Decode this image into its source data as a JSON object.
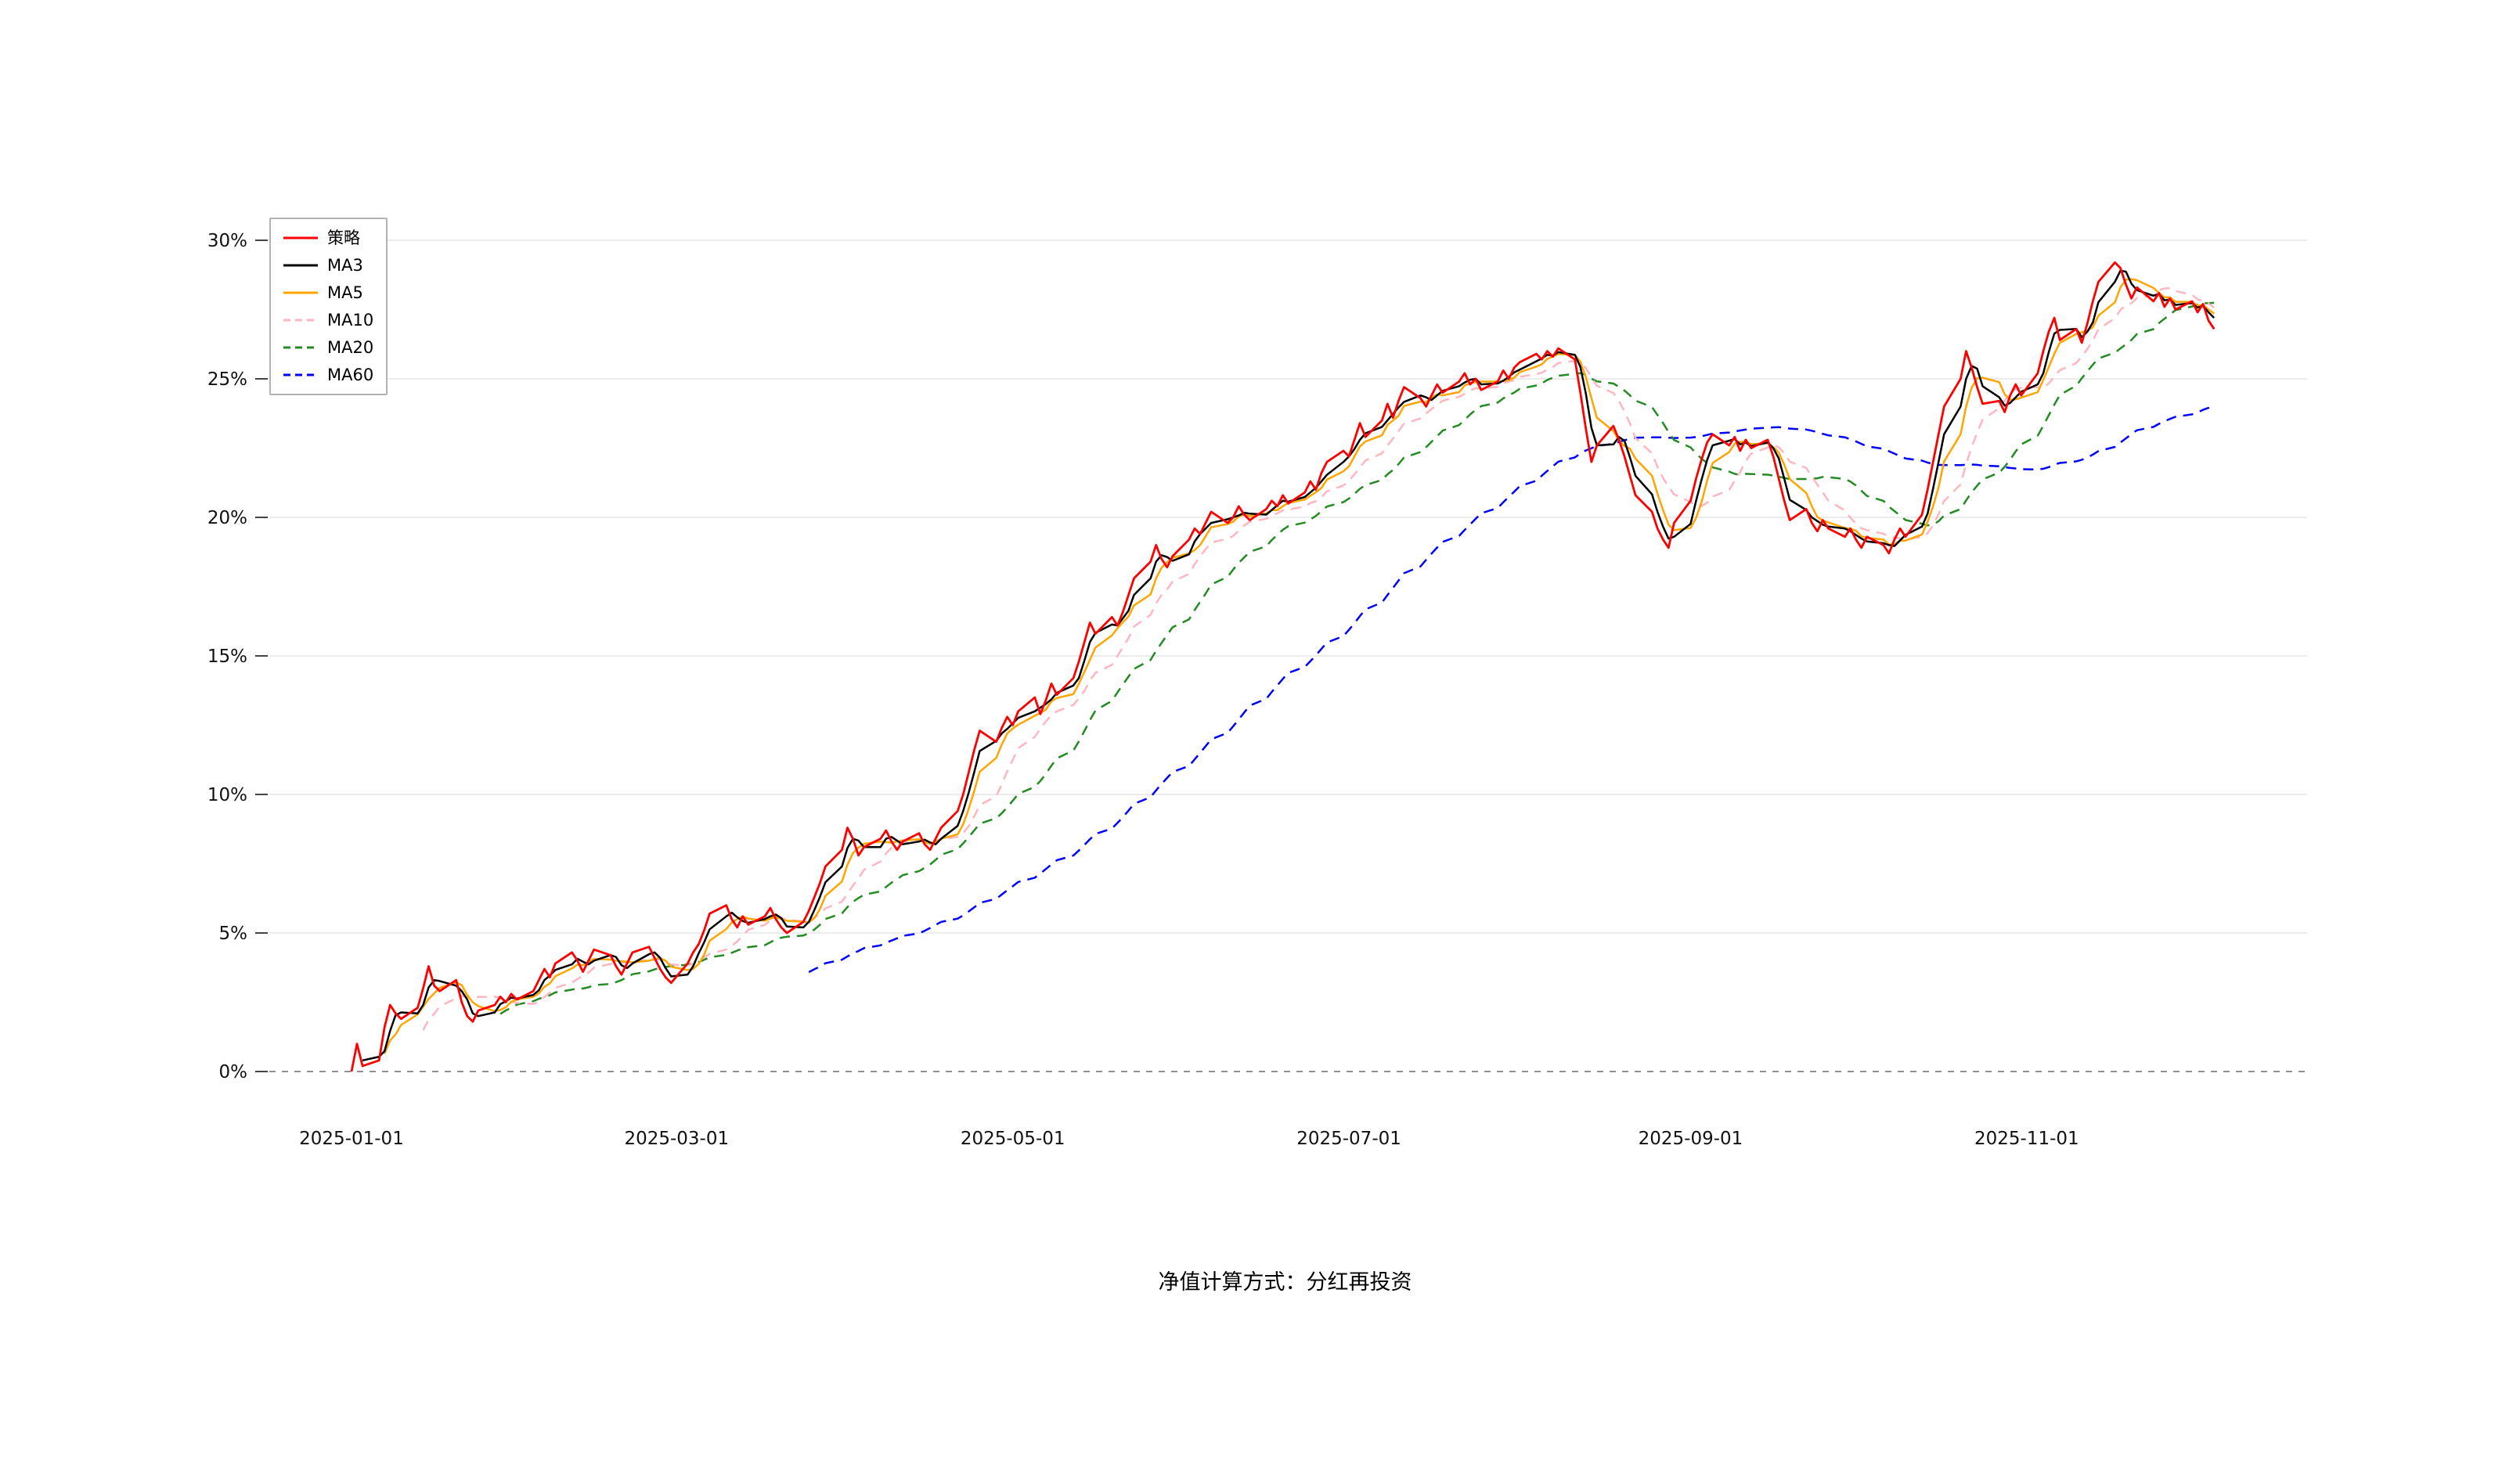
{
  "chart_data": {
    "type": "line",
    "title": "",
    "grid": true,
    "zero_line": "dashed",
    "x_axis": {
      "tick_labels": [
        "2025-01-01",
        "2025-03-01",
        "2025-05-01",
        "2025-07-01",
        "2025-09-01",
        "2025-11-01"
      ]
    },
    "y_axis": {
      "tick_labels": [
        "0%",
        "5%",
        "10%",
        "15%",
        "20%",
        "25%",
        "30%"
      ],
      "tick_values": [
        0,
        5,
        10,
        15,
        20,
        25,
        30
      ],
      "unit": "%",
      "ylim": [
        -1,
        31
      ]
    },
    "dates": {
      "start": "2025-01-01",
      "frequency": "weekdays",
      "count": 243,
      "end": "2025-12-05"
    },
    "legend": {
      "position": "top-left",
      "entries": [
        "策略",
        "MA3",
        "MA5",
        "MA10",
        "MA20",
        "MA60"
      ]
    },
    "series": [
      {
        "key": "strategy",
        "name": "策略",
        "type": "raw",
        "color": "#ff0000",
        "dash": "solid",
        "values": [
          0.0,
          1.0,
          0.2,
          0.4,
          1.6,
          2.4,
          2.1,
          1.9,
          2.3,
          3.0,
          3.8,
          3.1,
          2.9,
          3.3,
          2.5,
          2.0,
          1.8,
          2.2,
          2.4,
          2.7,
          2.5,
          2.8,
          2.6,
          2.9,
          3.3,
          3.7,
          3.4,
          3.9,
          4.3,
          4.0,
          3.6,
          4.0,
          4.4,
          4.2,
          3.8,
          3.5,
          3.9,
          4.3,
          4.5,
          4.1,
          3.7,
          3.4,
          3.2,
          3.9,
          4.3,
          4.6,
          5.1,
          5.7,
          6.0,
          5.5,
          5.2,
          5.6,
          5.3,
          5.6,
          5.9,
          5.5,
          5.2,
          5.0,
          5.4,
          5.8,
          6.3,
          6.8,
          7.4,
          8.0,
          8.8,
          8.4,
          7.8,
          8.1,
          8.4,
          8.7,
          8.3,
          8.0,
          8.3,
          8.6,
          8.2,
          8.0,
          8.4,
          8.8,
          9.4,
          10.0,
          10.8,
          11.6,
          12.3,
          11.9,
          12.4,
          12.8,
          12.5,
          13.0,
          13.5,
          12.9,
          13.4,
          14.0,
          13.6,
          14.2,
          14.8,
          15.5,
          16.2,
          15.8,
          16.4,
          16.1,
          16.6,
          17.2,
          17.8,
          18.4,
          19.0,
          18.5,
          18.2,
          18.6,
          19.2,
          19.6,
          19.4,
          19.8,
          20.2,
          19.8,
          20.0,
          20.4,
          20.1,
          19.9,
          20.3,
          20.6,
          20.4,
          20.8,
          20.5,
          20.9,
          21.3,
          21.0,
          21.6,
          22.0,
          22.4,
          22.2,
          22.8,
          23.4,
          22.9,
          23.5,
          24.1,
          23.6,
          24.2,
          24.7,
          24.3,
          24.0,
          24.4,
          24.8,
          24.5,
          24.9,
          25.2,
          24.8,
          25.0,
          24.6,
          24.9,
          25.3,
          25.0,
          25.4,
          25.6,
          25.9,
          25.7,
          26.0,
          25.8,
          26.1,
          25.7,
          24.5,
          23.2,
          22.0,
          22.6,
          23.3,
          22.8,
          22.2,
          21.5,
          20.8,
          20.2,
          19.6,
          19.2,
          18.9,
          19.8,
          20.6,
          21.4,
          22.1,
          22.7,
          23.0,
          22.6,
          22.9,
          22.4,
          22.8,
          22.5,
          22.8,
          22.2,
          21.4,
          20.6,
          19.9,
          20.3,
          19.8,
          19.5,
          19.9,
          19.6,
          19.3,
          19.6,
          19.2,
          18.9,
          19.3,
          19.0,
          18.7,
          19.2,
          19.6,
          19.3,
          20.1,
          21.0,
          22.0,
          23.0,
          24.0,
          25.0,
          26.0,
          25.4,
          24.7,
          24.1,
          24.2,
          23.8,
          24.4,
          24.8,
          24.4,
          25.2,
          26.0,
          26.7,
          27.2,
          26.4,
          26.8,
          26.3,
          27.0,
          27.8,
          28.5,
          29.2,
          29.0,
          28.4,
          27.9,
          28.3,
          27.8,
          28.1,
          27.6,
          27.9,
          27.5,
          27.8,
          27.4,
          27.7,
          27.1,
          26.8
        ]
      },
      {
        "key": "ma3",
        "name": "MA3",
        "type": "moving_average",
        "window": 3,
        "color": "#000000",
        "dash": "solid"
      },
      {
        "key": "ma5",
        "name": "MA5",
        "type": "moving_average",
        "window": 5,
        "color": "#ffa500",
        "dash": "solid"
      },
      {
        "key": "ma10",
        "name": "MA10",
        "type": "moving_average",
        "window": 10,
        "color": "#ffb6c1",
        "dash": "dashed"
      },
      {
        "key": "ma20",
        "name": "MA20",
        "type": "moving_average",
        "window": 20,
        "color": "#228b22",
        "dash": "dashed"
      },
      {
        "key": "ma60",
        "name": "MA60",
        "type": "moving_average",
        "window": 60,
        "color": "#0000ff",
        "dash": "dashed"
      }
    ]
  },
  "footer": {
    "note": "净值计算方式：分红再投资"
  }
}
